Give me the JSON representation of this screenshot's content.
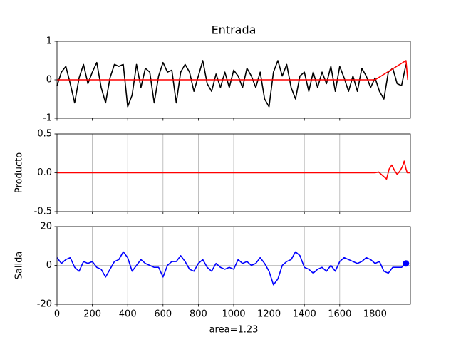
{
  "chart_data": [
    {
      "type": "line",
      "title": "Entrada",
      "xlim": [
        0,
        2000
      ],
      "ylim": [
        -1,
        1
      ],
      "yticks": [
        -1,
        0,
        1
      ],
      "grid": false,
      "x": [
        0,
        25,
        50,
        75,
        100,
        125,
        150,
        175,
        200,
        225,
        250,
        275,
        300,
        325,
        350,
        375,
        400,
        425,
        450,
        475,
        500,
        525,
        550,
        575,
        600,
        625,
        650,
        675,
        700,
        725,
        750,
        775,
        800,
        825,
        850,
        875,
        900,
        925,
        950,
        975,
        1000,
        1025,
        1050,
        1075,
        1100,
        1125,
        1150,
        1175,
        1200,
        1225,
        1250,
        1275,
        1300,
        1325,
        1350,
        1375,
        1400,
        1425,
        1450,
        1475,
        1500,
        1525,
        1550,
        1575,
        1600,
        1625,
        1650,
        1675,
        1700,
        1725,
        1750,
        1775,
        1800,
        1825,
        1850,
        1875,
        1900,
        1925,
        1950,
        1975
      ],
      "series": [
        {
          "color": "#000000",
          "values": [
            -0.15,
            0.2,
            0.35,
            -0.1,
            -0.6,
            0.05,
            0.4,
            -0.1,
            0.2,
            0.45,
            -0.2,
            -0.6,
            0.05,
            0.4,
            0.35,
            0.4,
            -0.7,
            -0.4,
            0.4,
            -0.2,
            0.3,
            0.2,
            -0.6,
            0.1,
            0.45,
            0.2,
            0.25,
            -0.6,
            0.2,
            0.4,
            0.2,
            -0.3,
            0.1,
            0.5,
            -0.1,
            -0.3,
            0.15,
            -0.2,
            0.2,
            -0.2,
            0.25,
            0.1,
            -0.2,
            0.3,
            0.1,
            -0.2,
            0.2,
            -0.5,
            -0.7,
            0.2,
            0.5,
            0.1,
            0.4,
            -0.2,
            -0.5,
            0.1,
            0.2,
            -0.3,
            0.2,
            -0.2,
            0.2,
            -0.1,
            0.35,
            -0.3,
            0.35,
            0.05,
            -0.3,
            0.1,
            -0.3,
            0.3,
            0.1,
            -0.2,
            0.05,
            -0.3,
            -0.5,
            0.2,
            0.3,
            -0.1,
            -0.15,
            0.4
          ]
        },
        {
          "color": "#ff0000",
          "x": [
            0,
            1800,
            1975,
            1985
          ],
          "values": [
            0,
            0,
            0.5,
            0
          ]
        }
      ]
    },
    {
      "type": "line",
      "ylabel": "Producto",
      "xlim": [
        0,
        2000
      ],
      "ylim": [
        -0.5,
        0.5
      ],
      "yticks": [
        -0.5,
        {
          "value": 0,
          "label": "0.0"
        },
        0.5
      ],
      "grid": true,
      "series": [
        {
          "color": "#ff0000",
          "x": [
            0,
            1800,
            1820,
            1845,
            1865,
            1880,
            1895,
            1910,
            1925,
            1940,
            1955,
            1965,
            1975,
            1982,
            2000
          ],
          "values": [
            0,
            0,
            0.01,
            -0.04,
            -0.08,
            0.05,
            0.1,
            0.03,
            -0.02,
            0.02,
            0.08,
            0.15,
            0.05,
            0,
            0
          ]
        }
      ]
    },
    {
      "type": "line",
      "ylabel": "Salida",
      "xlabel": "area=1.23",
      "xlim": [
        0,
        2000
      ],
      "ylim": [
        -20,
        20
      ],
      "yticks": [
        -20,
        0,
        20
      ],
      "grid": true,
      "xticks": [
        0,
        200,
        400,
        600,
        800,
        1000,
        1200,
        1400,
        1600,
        1800
      ],
      "endpoint_marker": true,
      "x": [
        0,
        25,
        50,
        75,
        100,
        125,
        150,
        175,
        200,
        225,
        250,
        275,
        300,
        325,
        350,
        375,
        400,
        425,
        450,
        475,
        500,
        525,
        550,
        575,
        600,
        625,
        650,
        675,
        700,
        725,
        750,
        775,
        800,
        825,
        850,
        875,
        900,
        925,
        950,
        975,
        1000,
        1025,
        1050,
        1075,
        1100,
        1125,
        1150,
        1175,
        1200,
        1225,
        1250,
        1275,
        1300,
        1325,
        1350,
        1375,
        1400,
        1425,
        1450,
        1475,
        1500,
        1525,
        1550,
        1575,
        1600,
        1625,
        1650,
        1675,
        1700,
        1725,
        1750,
        1775,
        1800,
        1825,
        1850,
        1875,
        1900,
        1925,
        1950,
        1975
      ],
      "series": [
        {
          "color": "#0000ff",
          "values": [
            4,
            1,
            3,
            4,
            -1,
            -3,
            2,
            1,
            2,
            -1,
            -2,
            -6,
            -2,
            2,
            3,
            7,
            4,
            -3,
            0,
            3,
            1,
            0,
            -1,
            -1,
            -6,
            0,
            2,
            2,
            5,
            2,
            -2,
            -3,
            1,
            3,
            -1,
            -3,
            1,
            -1,
            -2,
            -1,
            -2,
            3,
            1,
            2,
            0,
            1,
            4,
            1,
            -3,
            -10,
            -7,
            0,
            2,
            3,
            7,
            5,
            -1,
            -2,
            -4,
            -2,
            -1,
            -3,
            0,
            -3,
            2,
            4,
            3,
            2,
            1,
            2,
            4,
            3,
            1,
            2,
            -3,
            -4,
            -1,
            -1,
            -1,
            1
          ]
        }
      ]
    }
  ]
}
